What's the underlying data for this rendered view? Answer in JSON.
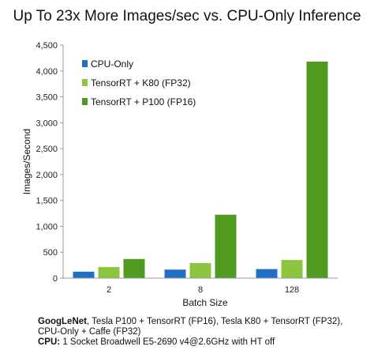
{
  "chart_data": {
    "type": "bar",
    "title": "Up To 23x More Images/sec vs. CPU-Only Inference",
    "xlabel": "Batch  Size",
    "ylabel": "Images/Second",
    "categories": [
      "2",
      "8",
      "128"
    ],
    "ylim": [
      0,
      4500
    ],
    "yticks": [
      0,
      500,
      1000,
      1500,
      2000,
      2500,
      3000,
      3500,
      4000,
      4500
    ],
    "ytick_labels": [
      "0",
      "500",
      "1,000",
      "1,500",
      "2,000",
      "2,500",
      "3,000",
      "3,500",
      "4,000",
      "4,500"
    ],
    "grid": false,
    "legend_position": "top-left",
    "series": [
      {
        "name": "CPU-Only",
        "color": "#1f6fc5",
        "values": [
          125,
          165,
          175
        ]
      },
      {
        "name": "TensorRT + K80 (FP32)",
        "color": "#8cc63f",
        "values": [
          215,
          290,
          350
        ]
      },
      {
        "name": "TensorRT + P100 (FP16)",
        "color": "#4f9a1f",
        "values": [
          370,
          1225,
          4180
        ]
      }
    ]
  },
  "footnote": {
    "line1_bold": "GoogLeNet",
    "line1_rest": ", Tesla P100 + TensorRT (FP16), Tesla K80 + TensorRT (FP32),",
    "line2": "CPU-Only + Caffe (FP32)",
    "line3_bold": "CPU:",
    "line3_rest": " 1 Socket Broadwell E5-2690 v4@2.6GHz with HT off"
  }
}
